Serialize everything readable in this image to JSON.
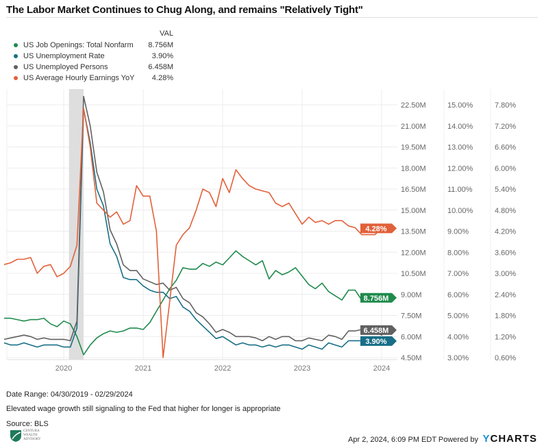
{
  "title": "The Labor Market Continues to Chug Along, and remains \"Relatively Tight\"",
  "legend": {
    "header": "VAL",
    "items": [
      {
        "label": "US Job Openings: Total Nonfarm",
        "value": "8.756M",
        "color": "#1f8a4c"
      },
      {
        "label": "US Unemployment Rate",
        "value": "3.90%",
        "color": "#176e86"
      },
      {
        "label": "US Unemployed Persons",
        "value": "6.458M",
        "color": "#606060"
      },
      {
        "label": "US Average Hourly Earnings YoY",
        "value": "4.28%",
        "color": "#e2603a"
      }
    ]
  },
  "chart_data": {
    "type": "line",
    "x_start": "2019-04",
    "x_end": "2024-02",
    "x_frequency": "monthly",
    "x_tick_labels": [
      "2020",
      "2021",
      "2022",
      "2023",
      "2024"
    ],
    "recession_shading": [
      "2020-02",
      "2020-04"
    ],
    "grid": true,
    "axes": [
      {
        "id": "millions",
        "range": [
          4.5,
          22.5
        ],
        "tick_labels": [
          "22.50M",
          "21.00M",
          "19.50M",
          "18.00M",
          "16.50M",
          "15.00M",
          "13.50M",
          "12.00M",
          "10.50M",
          "9.00M",
          "7.50M",
          "6.00M",
          "4.50M"
        ]
      },
      {
        "id": "unemployment-rate",
        "range": [
          3,
          15
        ],
        "tick_labels": [
          "15.00%",
          "14.00%",
          "13.00%",
          "12.00%",
          "11.00%",
          "10.00%",
          "9.00%",
          "8.00%",
          "7.00%",
          "6.00%",
          "5.00%",
          "4.00%",
          "3.00%"
        ]
      },
      {
        "id": "earnings-yoy",
        "range": [
          0.6,
          7.8
        ],
        "tick_labels": [
          "7.80%",
          "7.20%",
          "6.60%",
          "6.00%",
          "5.40%",
          "4.80%",
          "4.20%",
          "3.60%",
          "3.00%",
          "2.40%",
          "1.80%",
          "1.20%",
          "0.60%"
        ]
      }
    ],
    "series": [
      {
        "name": "US Job Openings: Total Nonfarm",
        "axis": 0,
        "color": "#1f8a4c",
        "end_label": "8.756M",
        "values": [
          7.3,
          7.3,
          7.2,
          7.1,
          7.2,
          7.2,
          7.3,
          6.9,
          6.7,
          7.1,
          6.9,
          6.0,
          4.7,
          5.4,
          5.9,
          6.2,
          6.4,
          6.3,
          6.4,
          6.6,
          6.6,
          6.5,
          7.0,
          7.8,
          8.6,
          9.4,
          10.0,
          10.9,
          10.8,
          10.8,
          11.2,
          11.0,
          11.3,
          11.1,
          11.6,
          12.1,
          11.7,
          11.4,
          11.1,
          11.4,
          10.1,
          10.7,
          10.4,
          10.6,
          10.9,
          10.3,
          9.7,
          9.4,
          9.8,
          9.2,
          8.9,
          8.6,
          9.3,
          9.3,
          8.6,
          8.9,
          8.9,
          8.7,
          8.756
        ]
      },
      {
        "name": "US Unemployment Rate",
        "axis": 1,
        "color": "#176e86",
        "end_label": "3.90%",
        "values": [
          3.7,
          3.6,
          3.6,
          3.7,
          3.6,
          3.5,
          3.6,
          3.6,
          3.6,
          3.5,
          3.5,
          4.4,
          14.8,
          13.2,
          11.0,
          10.2,
          8.4,
          7.8,
          6.8,
          6.7,
          6.7,
          6.4,
          6.2,
          6.1,
          6.1,
          5.8,
          5.9,
          5.4,
          5.2,
          4.8,
          4.5,
          4.2,
          3.9,
          4.0,
          3.8,
          3.6,
          3.7,
          3.6,
          3.6,
          3.5,
          3.6,
          3.5,
          3.6,
          3.6,
          3.5,
          3.4,
          3.6,
          3.5,
          3.4,
          3.7,
          3.6,
          3.5,
          3.8,
          3.8,
          3.8,
          3.7,
          3.7,
          3.7,
          3.9
        ]
      },
      {
        "name": "US Unemployed Persons",
        "axis": 0,
        "color": "#606060",
        "end_label": "6.458M",
        "values": [
          5.8,
          5.9,
          6.0,
          6.1,
          6.0,
          5.8,
          5.9,
          5.8,
          5.8,
          5.8,
          5.7,
          7.1,
          23.1,
          21.0,
          17.7,
          16.3,
          13.6,
          12.6,
          11.1,
          10.7,
          10.7,
          10.1,
          9.9,
          9.7,
          9.8,
          9.3,
          9.5,
          8.7,
          8.4,
          7.7,
          7.4,
          6.9,
          6.3,
          6.5,
          6.3,
          6.0,
          6.0,
          6.0,
          5.9,
          5.7,
          6.0,
          5.8,
          6.0,
          6.0,
          5.7,
          5.7,
          5.9,
          5.8,
          5.7,
          6.1,
          6.0,
          5.8,
          6.4,
          6.4,
          6.5,
          6.3,
          6.3,
          6.1,
          6.458
        ]
      },
      {
        "name": "US Average Hourly Earnings YoY",
        "axis": 2,
        "color": "#e2603a",
        "end_label": "4.28%",
        "values": [
          3.25,
          3.3,
          3.4,
          3.4,
          3.45,
          3.0,
          3.2,
          3.25,
          2.9,
          3.0,
          3.2,
          3.8,
          7.7,
          6.6,
          5.0,
          4.8,
          4.6,
          4.75,
          4.4,
          4.5,
          5.5,
          5.2,
          5.2,
          4.2,
          0.6,
          2.2,
          3.8,
          4.1,
          4.3,
          4.8,
          5.4,
          5.3,
          4.9,
          5.7,
          5.3,
          5.95,
          5.7,
          5.5,
          5.4,
          5.35,
          5.3,
          5.0,
          4.9,
          5.0,
          4.7,
          4.4,
          4.6,
          4.45,
          4.5,
          4.4,
          4.5,
          4.5,
          4.35,
          4.3,
          4.1,
          4.1,
          4.1,
          4.3,
          4.28
        ]
      }
    ]
  },
  "footer": {
    "date_range": "Date Range: 04/30/2019 - 02/29/2024",
    "note": "Elevated wage growth still signaling to the Fed that higher for longer is appropriate",
    "source": "Source: BLS",
    "timestamp": "Apr 2, 2024, 6:09 PM EDT Powered by",
    "brand_y": "Y",
    "brand_rest": "CHARTS",
    "logo_text": "CENTURA WEALTH ADVISORY"
  }
}
